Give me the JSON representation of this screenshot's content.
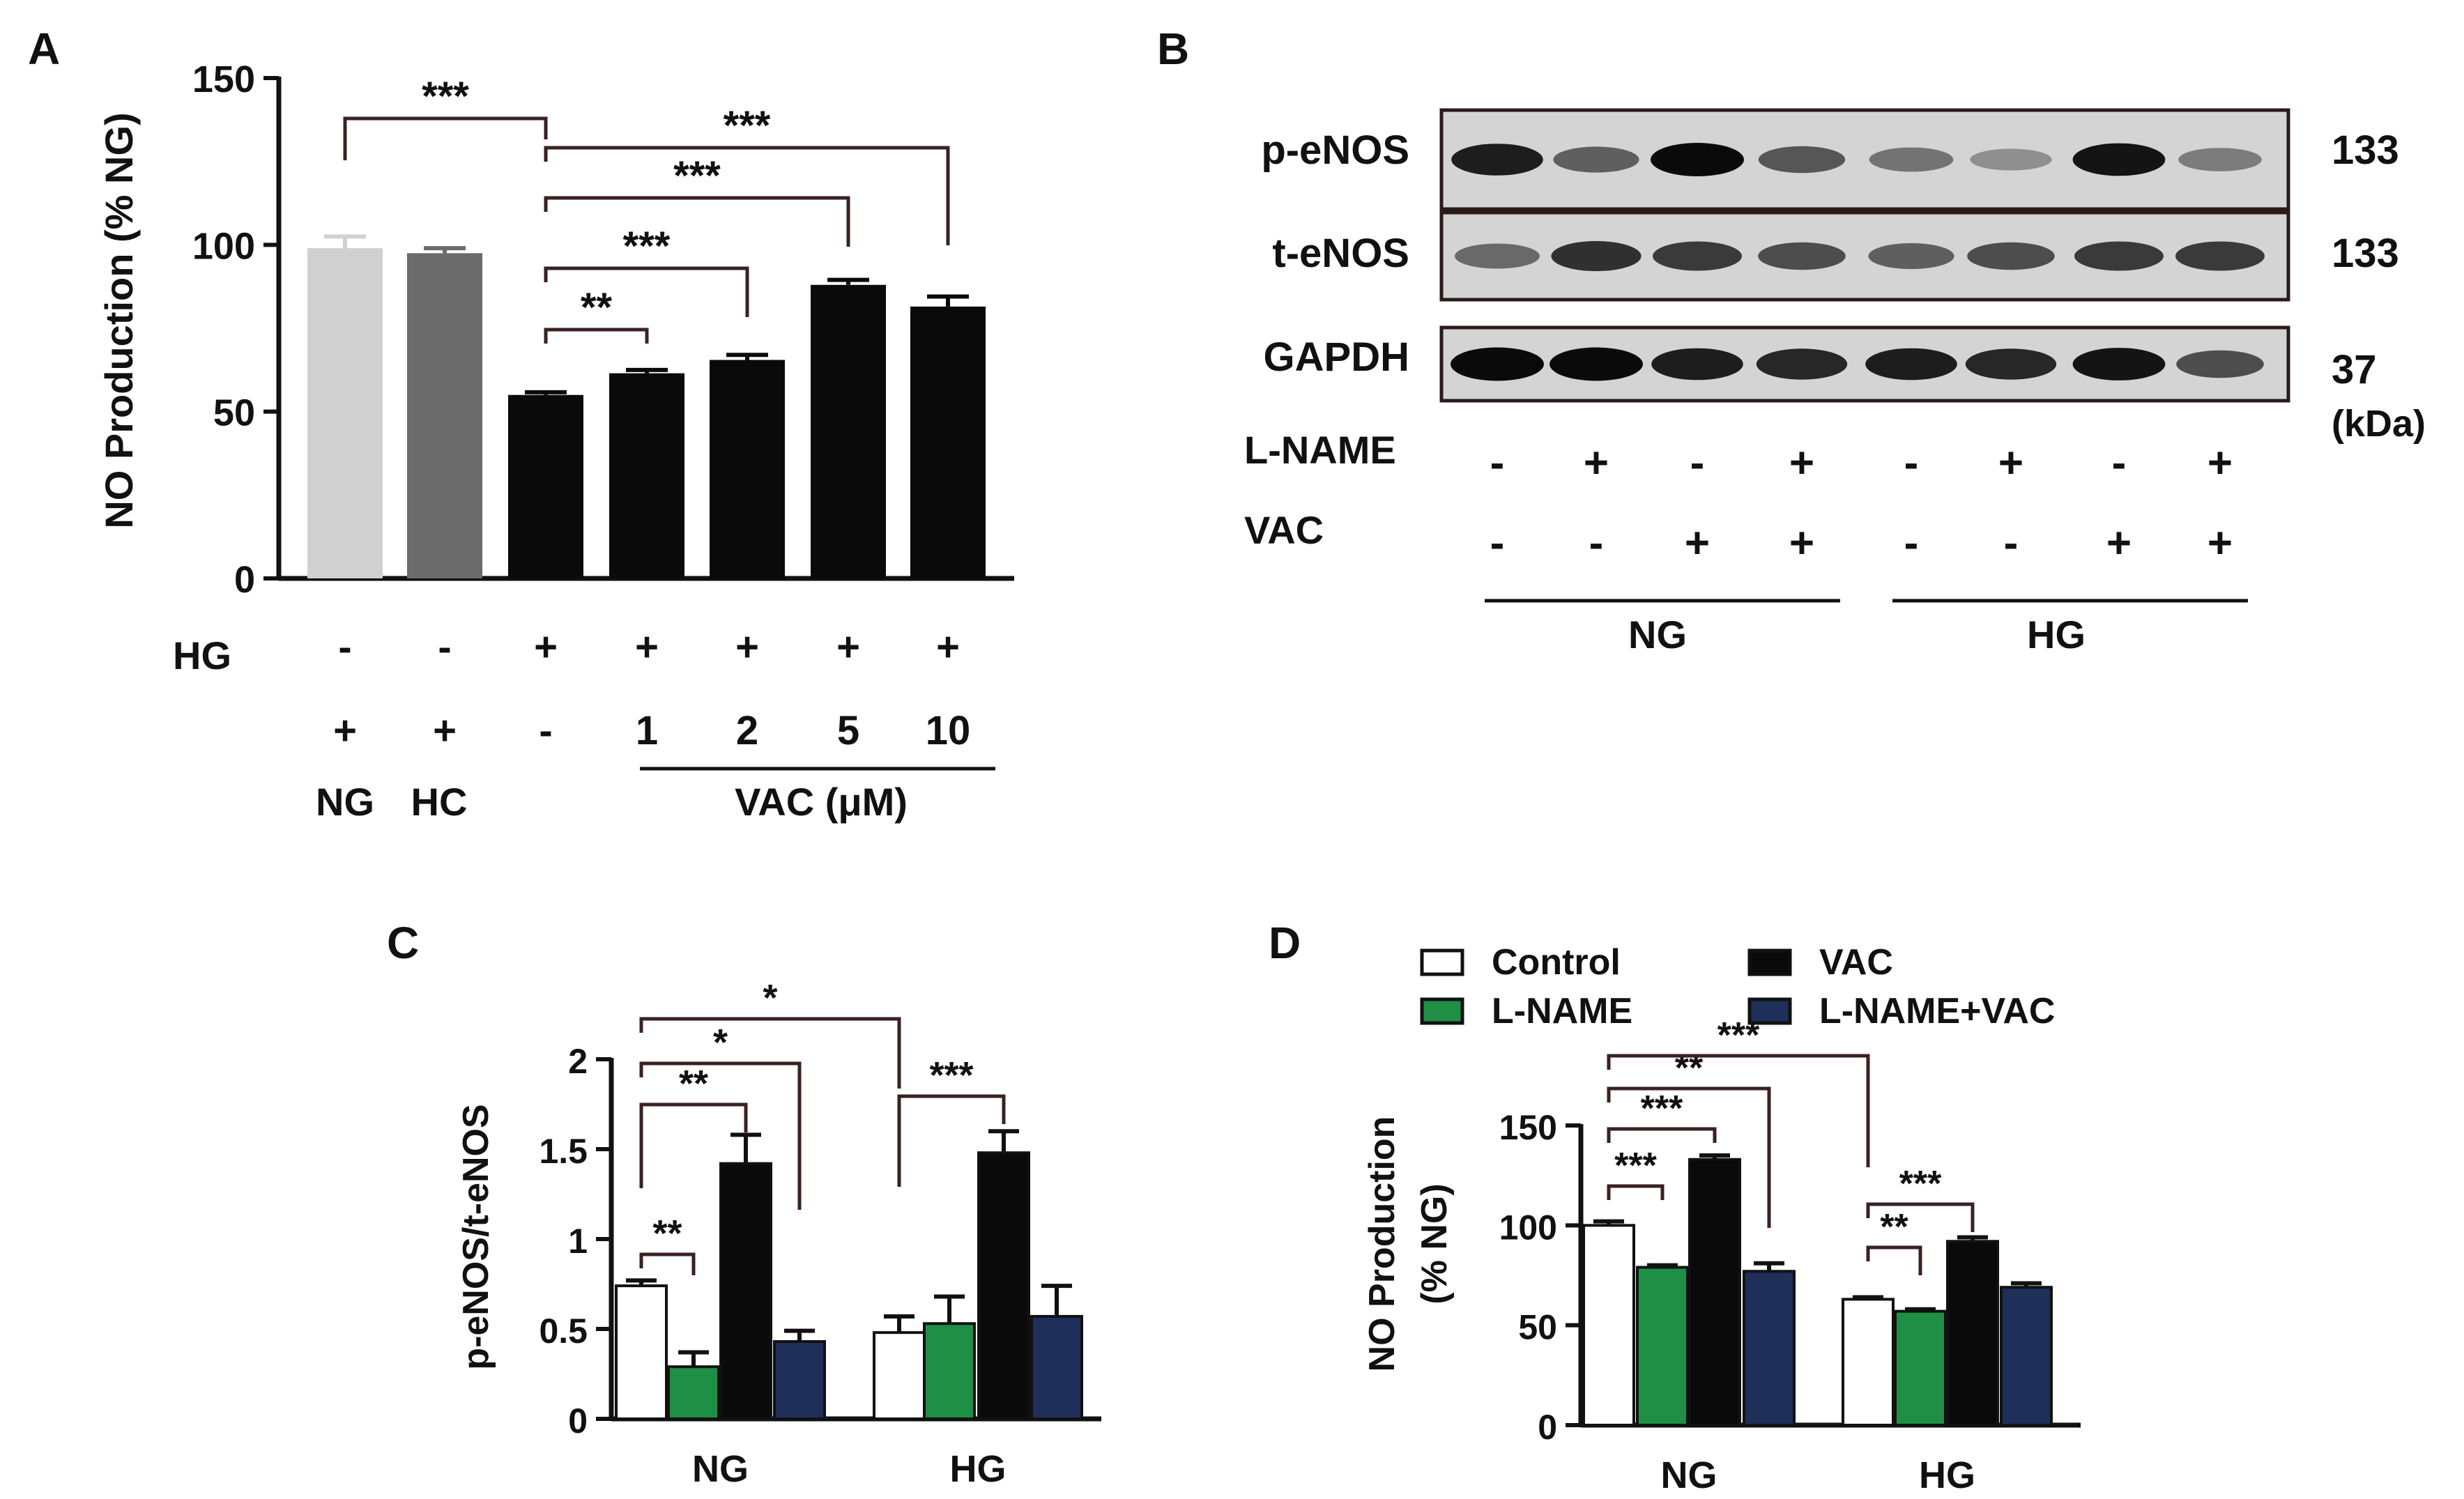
{
  "colors": {
    "axis": "#111111",
    "bracket": "#3a2222",
    "blot_bg": "#d4d4d4",
    "ng_bar": "#d0d0d0",
    "hc_bar": "#6b6b6b",
    "hg_bar": "#0a0a0a",
    "control": "#ffffff",
    "lname": "#1f8f46",
    "vac": "#0a0a0a",
    "lname_vac": "#1e2f5a"
  },
  "chart_data": [
    {
      "panel": "A",
      "type": "bar",
      "ylabel": "NO Production (% NG)",
      "ylim": [
        0,
        150
      ],
      "yticks": [
        "0",
        "50",
        "100",
        "150"
      ],
      "values": [
        99,
        97.5,
        55,
        61.5,
        65.5,
        88,
        81.5
      ],
      "errors": [
        3.5,
        1.5,
        0.8,
        1.0,
        1.5,
        1.5,
        3.0
      ],
      "bar_colors": [
        "ng_bar",
        "hc_bar",
        "hg_bar",
        "hg_bar",
        "hg_bar",
        "hg_bar",
        "hg_bar"
      ],
      "rows": [
        {
          "label": "HG",
          "cells": [
            "-",
            "-",
            "+",
            "+",
            "+",
            "+",
            "+"
          ]
        },
        {
          "label": "",
          "cells": [
            "+",
            "+",
            "-",
            "1",
            "2",
            "5",
            "10"
          ]
        }
      ],
      "group_labels": [
        "NG",
        "HC"
      ],
      "vac_label": "VAC (μM)",
      "significance": [
        {
          "from": 0,
          "to": 2,
          "label": "***"
        },
        {
          "from": 2,
          "to": 3,
          "label": "**"
        },
        {
          "from": 2,
          "to": 4,
          "label": "***"
        },
        {
          "from": 2,
          "to": 5,
          "label": "***"
        },
        {
          "from": 2,
          "to": 6,
          "label": "***"
        }
      ]
    },
    {
      "panel": "B",
      "type": "table",
      "bands": [
        "p-eNOS",
        "t-eNOS",
        "GAPDH"
      ],
      "kda": [
        "133",
        "133",
        "37"
      ],
      "kda_unit": "(kDa)",
      "band_intensity": [
        [
          0.9,
          0.55,
          1.0,
          0.6,
          0.45,
          0.3,
          0.95,
          0.4
        ],
        [
          0.5,
          0.8,
          0.75,
          0.65,
          0.55,
          0.65,
          0.75,
          0.75
        ],
        [
          1.0,
          1.0,
          0.9,
          0.85,
          0.9,
          0.85,
          0.95,
          0.65
        ]
      ],
      "rows": [
        {
          "label": "L-NAME",
          "cells": [
            "-",
            "+",
            "-",
            "+",
            "-",
            "+",
            "-",
            "+"
          ]
        },
        {
          "label": "VAC",
          "cells": [
            "-",
            "-",
            "+",
            "+",
            "-",
            "-",
            "+",
            "+"
          ]
        }
      ],
      "groups": [
        "NG",
        "HG"
      ]
    },
    {
      "panel": "C",
      "type": "bar",
      "ylabel": "p-eNOS/t-eNOS",
      "ylim": [
        0,
        2
      ],
      "yticks": [
        "0",
        "0.5",
        "1",
        "1.5",
        "2"
      ],
      "categories": [
        "NG",
        "HG"
      ],
      "series": [
        {
          "values": [
            0.74,
            0.48
          ],
          "errors": [
            0.03,
            0.09
          ],
          "color": "control"
        },
        {
          "values": [
            0.29,
            0.53
          ],
          "errors": [
            0.08,
            0.15
          ],
          "color": "lname"
        },
        {
          "values": [
            1.42,
            1.48
          ],
          "errors": [
            0.16,
            0.12
          ],
          "color": "vac"
        },
        {
          "values": [
            0.43,
            0.57
          ],
          "errors": [
            0.06,
            0.17
          ],
          "color": "lname_vac"
        }
      ],
      "significance": [
        {
          "from": [
            0,
            0
          ],
          "to": [
            0,
            1
          ],
          "label": "**"
        },
        {
          "from": [
            0,
            0
          ],
          "to": [
            0,
            2
          ],
          "label": "**"
        },
        {
          "from": [
            0,
            0
          ],
          "to": [
            0,
            3
          ],
          "label": "*"
        },
        {
          "from": [
            0,
            0
          ],
          "to": [
            1,
            0
          ],
          "label": "*"
        },
        {
          "from": [
            1,
            0
          ],
          "to": [
            1,
            2
          ],
          "label": "***"
        }
      ]
    },
    {
      "panel": "D",
      "type": "bar",
      "ylabel_lines": [
        "NO Production",
        "(% NG)"
      ],
      "ylim": [
        0,
        150
      ],
      "yticks": [
        "0",
        "50",
        "100",
        "150"
      ],
      "categories": [
        "NG",
        "HG"
      ],
      "series": [
        {
          "name": "Control",
          "values": [
            100,
            63
          ],
          "errors": [
            2,
            1
          ],
          "color": "control"
        },
        {
          "name": "L-NAME",
          "values": [
            79,
            57
          ],
          "errors": [
            1,
            1
          ],
          "color": "lname"
        },
        {
          "name": "VAC",
          "values": [
            133,
            92
          ],
          "errors": [
            2,
            2
          ],
          "color": "vac"
        },
        {
          "name": "L-NAME+VAC",
          "values": [
            77,
            69
          ],
          "errors": [
            4,
            2
          ],
          "color": "lname_vac"
        }
      ],
      "significance": [
        {
          "from": [
            0,
            0
          ],
          "to": [
            0,
            1
          ],
          "label": "***"
        },
        {
          "from": [
            0,
            0
          ],
          "to": [
            0,
            2
          ],
          "label": "***"
        },
        {
          "from": [
            0,
            0
          ],
          "to": [
            0,
            3
          ],
          "label": "**"
        },
        {
          "from": [
            0,
            0
          ],
          "to": [
            1,
            0
          ],
          "label": "***"
        },
        {
          "from": [
            1,
            0
          ],
          "to": [
            1,
            1
          ],
          "label": "**"
        },
        {
          "from": [
            1,
            0
          ],
          "to": [
            1,
            2
          ],
          "label": "***"
        }
      ]
    }
  ],
  "panels": {
    "a": "A",
    "b": "B",
    "c": "C",
    "d": "D"
  }
}
